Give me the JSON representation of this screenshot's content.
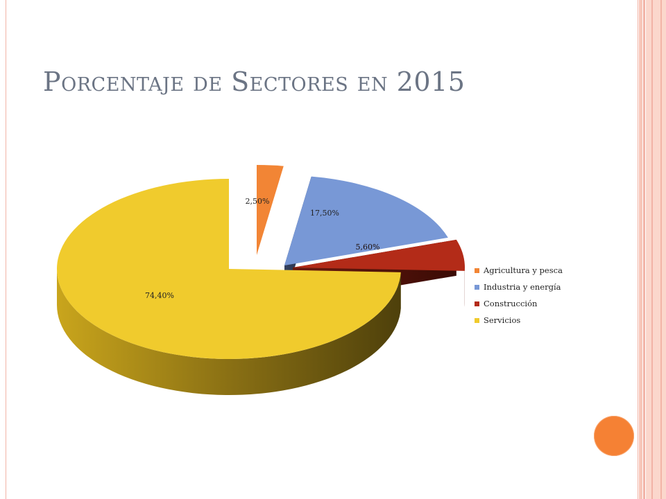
{
  "slide": {
    "title": "Porcentaje de Sectores en 2015"
  },
  "chart_data": {
    "type": "pie",
    "title": "Porcentaje de Sectores en 2015",
    "categories": [
      "Agricultura y pesca",
      "Industria y energía",
      "Construcción",
      "Servicios"
    ],
    "values": [
      2.5,
      17.5,
      5.6,
      74.4
    ],
    "data_labels": [
      "2,50%",
      "17,50%",
      "5,60%",
      "74,40%"
    ],
    "colors": [
      "#f28535",
      "#7898d6",
      "#b32b18",
      "#f0cb2d"
    ],
    "exploded": true,
    "three_d": true,
    "legend": "right"
  },
  "decor": {
    "accent_color": "#f58134",
    "frame_color": "#f2b3a6"
  }
}
